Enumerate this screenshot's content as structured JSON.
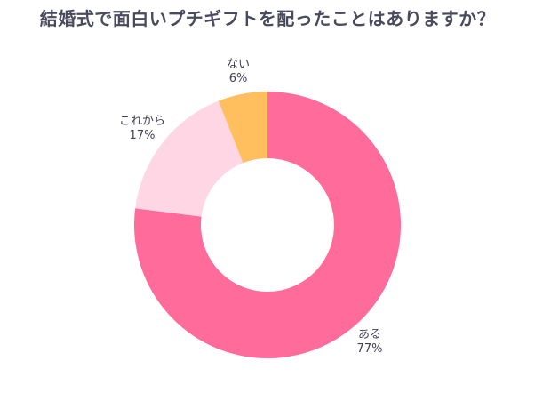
{
  "chart_data": {
    "type": "pie",
    "title": "結婚式で面白いプチギフトを配ったことはありますか？",
    "donut": true,
    "slices": [
      {
        "label": "ある",
        "value": 77,
        "value_label": "77%",
        "color": "#ff6b9a"
      },
      {
        "label": "これから",
        "value": 17,
        "value_label": "17%",
        "color": "#ffd6e4"
      },
      {
        "label": "ない",
        "value": 6,
        "value_label": "6%",
        "color": "#ffbf5e"
      }
    ]
  }
}
